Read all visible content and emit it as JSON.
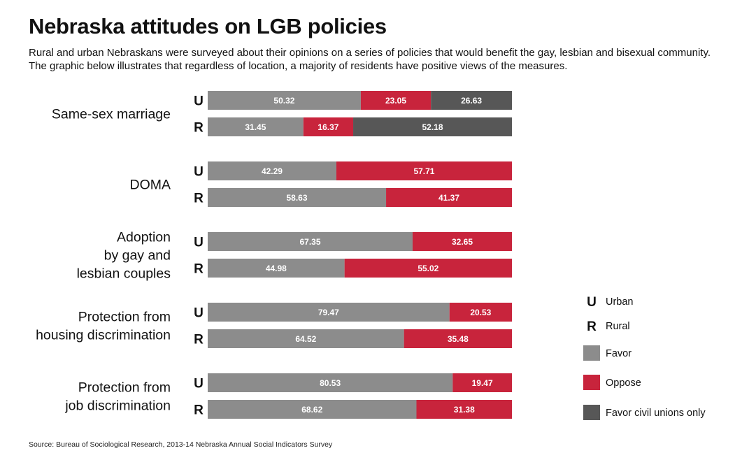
{
  "title": "Nebraska attitudes on LGB policies",
  "subtitle": "Rural and urban Nebraskans were surveyed about their opinions on a series of policies that would benefit the gay, lesbian and bisexual community. The graphic below illustrates that regardless of location, a majority of residents have positive views of the measures.",
  "source": "Source: Bureau of Sociological Research, 2013-14 Nebraska Annual Social Indicators Survey",
  "colors": {
    "favor": "#8c8c8c",
    "oppose": "#c8243c",
    "civil_unions": "#575757",
    "bar_text": "#ffffff"
  },
  "legend": [
    {
      "key": "U",
      "label": "Urban",
      "type": "letter"
    },
    {
      "key": "R",
      "label": "Rural",
      "type": "letter"
    },
    {
      "key": "favor",
      "label": "Favor",
      "type": "swatch"
    },
    {
      "key": "oppose",
      "label": "Oppose",
      "type": "swatch"
    },
    {
      "key": "civil_unions",
      "label": "Favor civil unions only",
      "type": "swatch"
    }
  ],
  "chart_data": {
    "type": "bar",
    "orientation": "horizontal",
    "stacked": true,
    "scale_max": 100,
    "series_keys": [
      "favor",
      "oppose",
      "civil_unions"
    ],
    "groups": [
      {
        "category": [
          "Same-sex marriage"
        ],
        "rows": [
          {
            "loc": "U",
            "values": [
              50.32,
              23.05,
              26.63
            ]
          },
          {
            "loc": "R",
            "values": [
              31.45,
              16.37,
              52.18
            ]
          }
        ]
      },
      {
        "category": [
          "DOMA"
        ],
        "rows": [
          {
            "loc": "U",
            "values": [
              42.29,
              57.71
            ]
          },
          {
            "loc": "R",
            "values": [
              58.63,
              41.37
            ]
          }
        ]
      },
      {
        "category": [
          "Adoption",
          "by gay and",
          "lesbian couples"
        ],
        "rows": [
          {
            "loc": "U",
            "values": [
              67.35,
              32.65
            ]
          },
          {
            "loc": "R",
            "values": [
              44.98,
              55.02
            ]
          }
        ]
      },
      {
        "category": [
          "Protection from",
          "housing discrimination"
        ],
        "rows": [
          {
            "loc": "U",
            "values": [
              79.47,
              20.53
            ]
          },
          {
            "loc": "R",
            "values": [
              64.52,
              35.48
            ]
          }
        ]
      },
      {
        "category": [
          "Protection from",
          "job discrimination"
        ],
        "rows": [
          {
            "loc": "U",
            "values": [
              80.53,
              19.47
            ]
          },
          {
            "loc": "R",
            "values": [
              68.62,
              31.38
            ]
          }
        ]
      }
    ]
  }
}
